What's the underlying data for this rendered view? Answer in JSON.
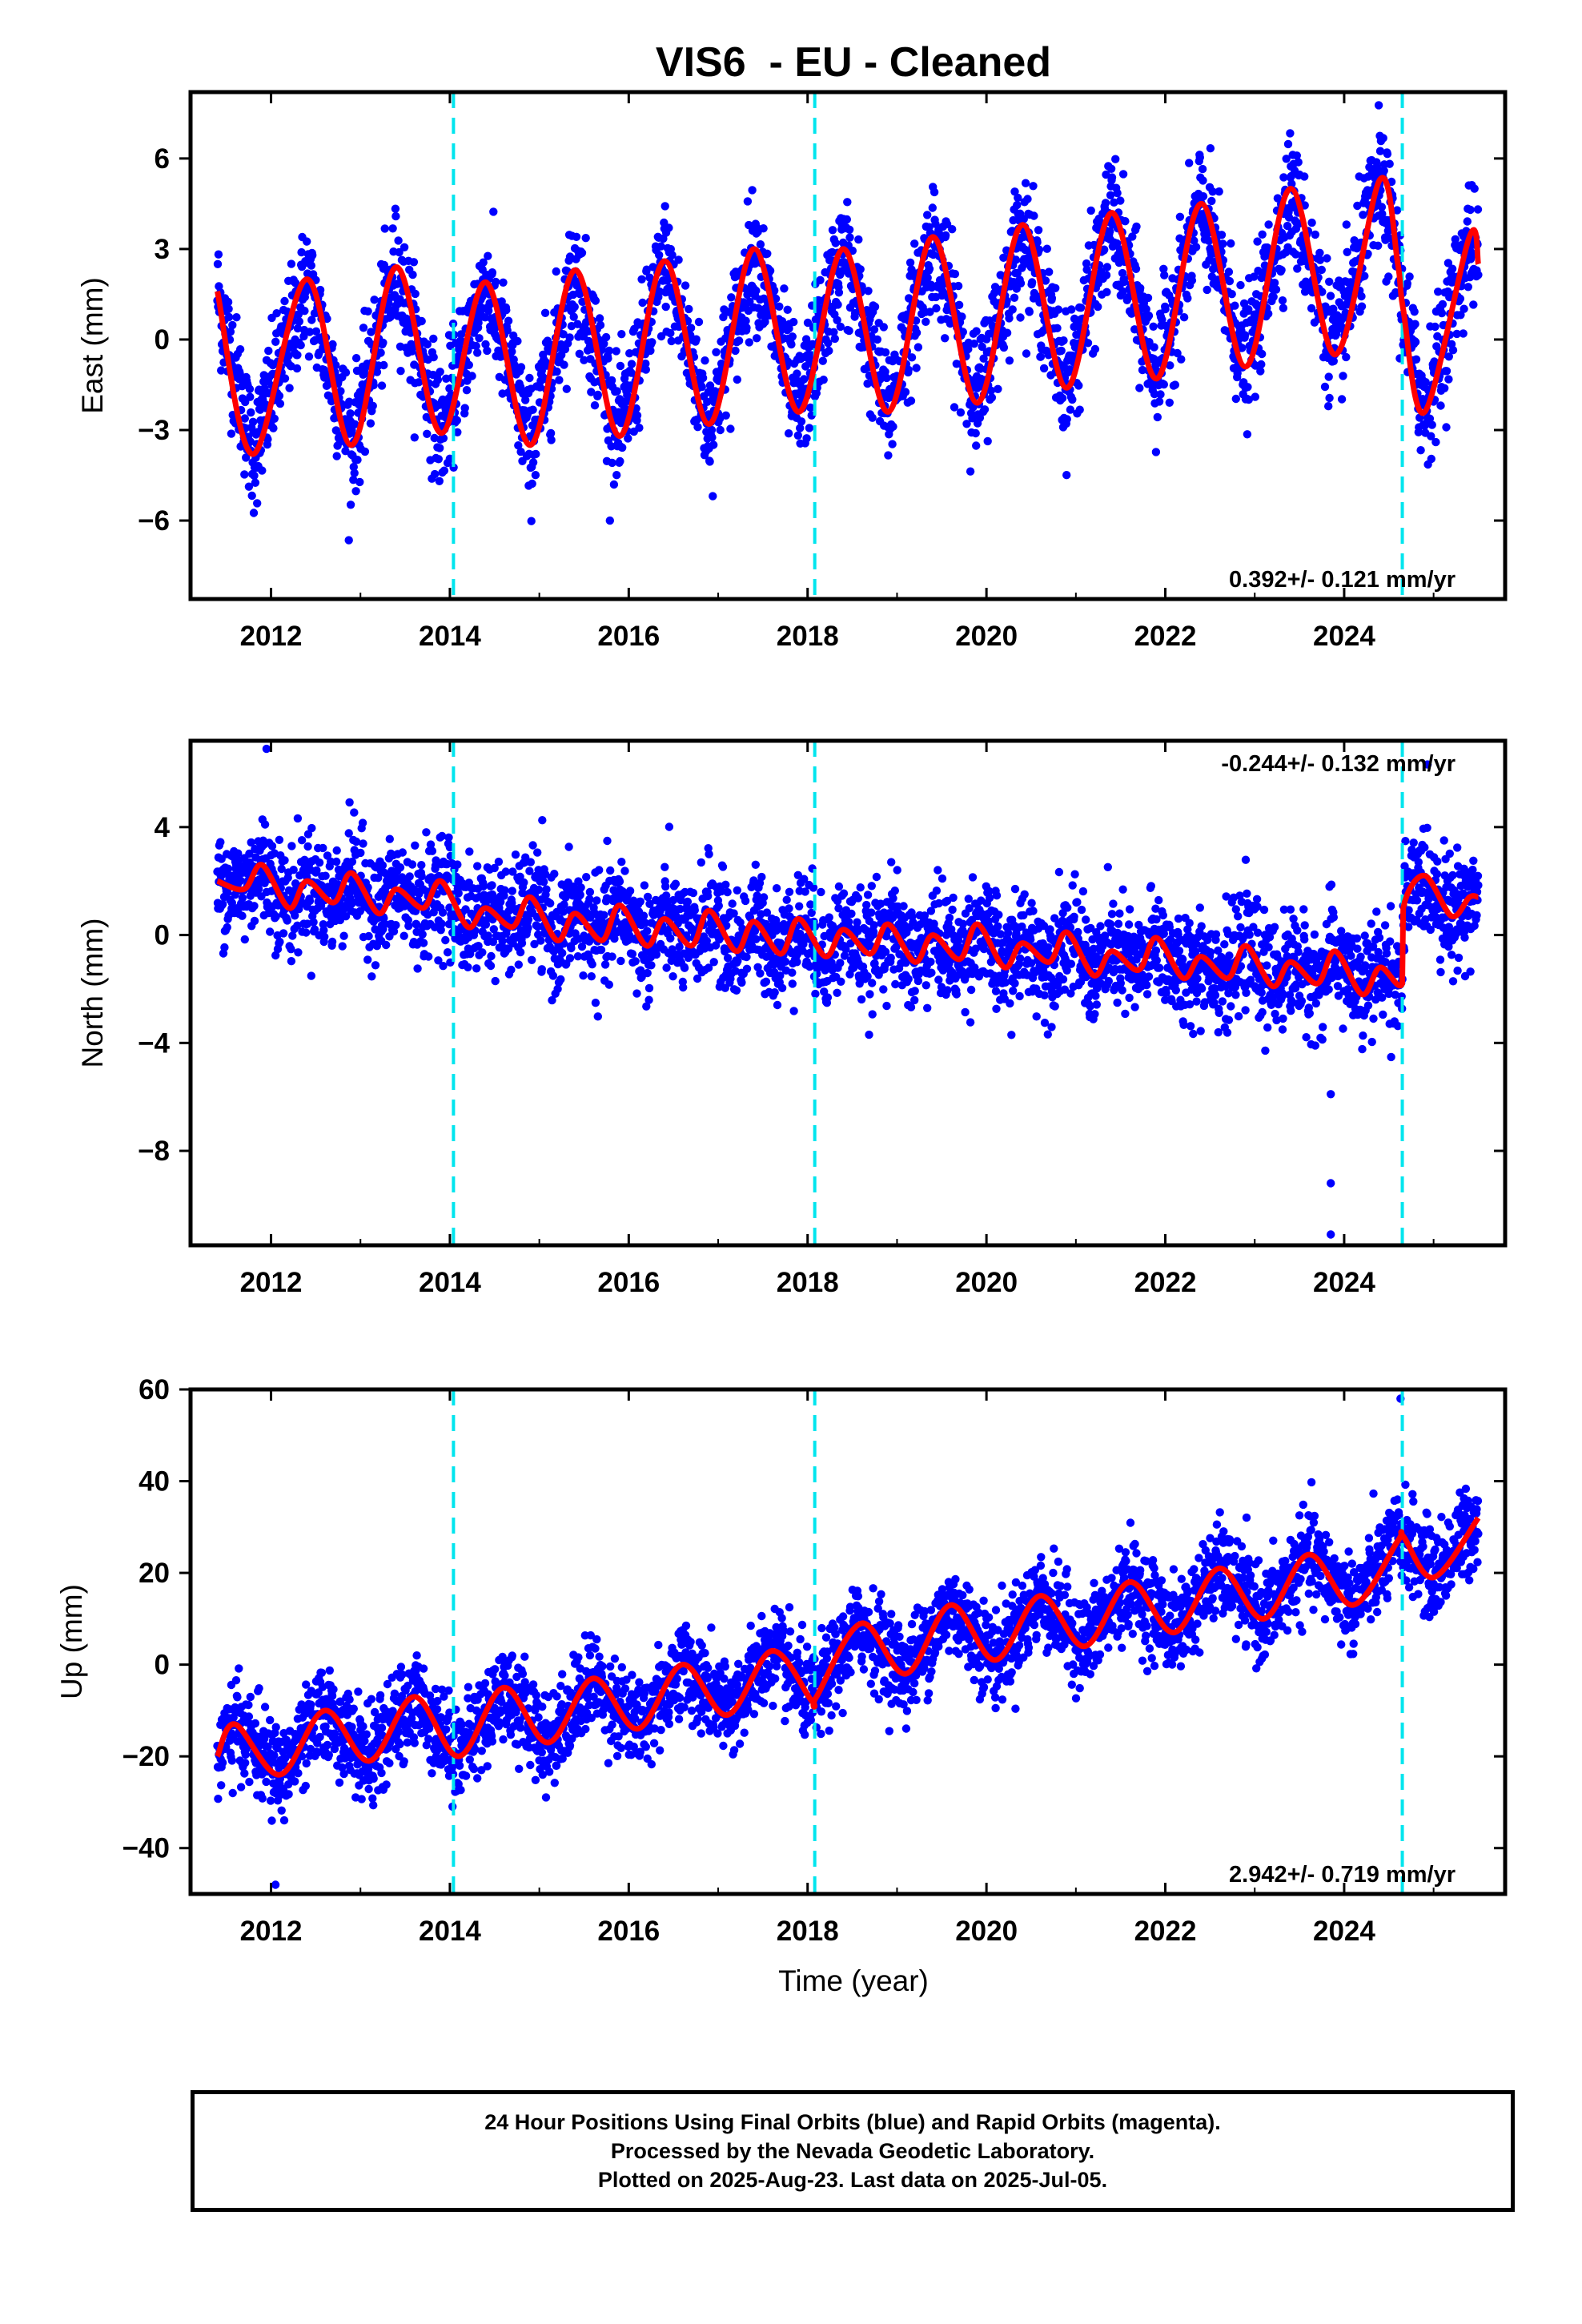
{
  "title": "VIS6  - EU - Cleaned",
  "xlabel": "Time (year)",
  "colors": {
    "final_orbits": "#0000ff",
    "model_fit": "#ff0000",
    "event_lines": "#00e5ee",
    "rapid_orbits": "#ff00ff"
  },
  "event_lines_years": [
    2014.04,
    2018.08,
    2024.65
  ],
  "footer": {
    "line1": "24 Hour Positions Using Final Orbits (blue) and Rapid Orbits (magenta).",
    "line2": "Processed by the Nevada Geodetic Laboratory.",
    "line3": "Plotted on 2025-Aug-23. Last data on 2025-Jul-05."
  },
  "chart_data": [
    {
      "type": "scatter",
      "component": "East",
      "ylabel": "East (mm)",
      "xlim": [
        2011.1,
        2025.8
      ],
      "ylim": [
        -8.6,
        8.2
      ],
      "xticks": [
        "2012",
        "2014",
        "2016",
        "2018",
        "2020",
        "2022",
        "2024"
      ],
      "yticks": [
        "6",
        "3",
        "0",
        "-3",
        "-6"
      ],
      "rate_label": "0.392+/- 0.121 mm/yr",
      "rate_position": "bottom-right",
      "fit_model": {
        "x": [
          2011.4,
          2011.8,
          2012.4,
          2012.9,
          2013.4,
          2013.9,
          2014.4,
          2014.9,
          2015.4,
          2015.9,
          2016.4,
          2016.9,
          2017.4,
          2017.9,
          2018.4,
          2018.9,
          2019.4,
          2019.9,
          2020.4,
          2020.9,
          2021.4,
          2021.9,
          2022.4,
          2022.9,
          2023.4,
          2023.9,
          2024.4,
          2024.6,
          2024.66,
          2024.9,
          2025.4,
          2025.5
        ],
        "y": [
          1.6,
          -3.8,
          2.0,
          -3.5,
          2.4,
          -3.1,
          1.9,
          -3.5,
          2.3,
          -3.2,
          2.6,
          -2.8,
          3.0,
          -2.4,
          3.0,
          -2.4,
          3.4,
          -2.1,
          3.8,
          -1.6,
          4.2,
          -1.3,
          4.5,
          -0.9,
          5.0,
          -0.5,
          5.3,
          2.5,
          1.0,
          -2.4,
          3.4,
          2.5
        ]
      }
    },
    {
      "type": "scatter",
      "component": "North",
      "ylabel": "North (mm)",
      "xlim": [
        2011.1,
        2025.8
      ],
      "ylim": [
        -11.5,
        7.2
      ],
      "xticks": [
        "2012",
        "2014",
        "2016",
        "2018",
        "2020",
        "2022",
        "2024"
      ],
      "yticks": [
        "4",
        "0",
        "-4",
        "-8"
      ],
      "rate_label": "-0.244+/- 0.132 mm/yr",
      "rate_position": "top-right",
      "fit_model": {
        "x": [
          2011.4,
          2011.7,
          2011.9,
          2012.2,
          2012.4,
          2012.7,
          2012.9,
          2013.2,
          2013.4,
          2013.7,
          2013.9,
          2014.2,
          2014.4,
          2014.7,
          2014.9,
          2015.2,
          2015.4,
          2015.7,
          2015.9,
          2016.2,
          2016.4,
          2016.7,
          2016.9,
          2017.2,
          2017.4,
          2017.7,
          2017.9,
          2018.2,
          2018.4,
          2018.7,
          2018.9,
          2019.2,
          2019.4,
          2019.7,
          2019.9,
          2020.2,
          2020.4,
          2020.7,
          2020.9,
          2021.2,
          2021.4,
          2021.7,
          2021.9,
          2022.2,
          2022.4,
          2022.7,
          2022.9,
          2023.2,
          2023.4,
          2023.7,
          2023.9,
          2024.2,
          2024.4,
          2024.65,
          2024.66,
          2024.9,
          2025.2,
          2025.4,
          2025.5
        ],
        "y": [
          2.0,
          1.7,
          2.6,
          1.0,
          2.0,
          1.2,
          2.3,
          0.8,
          1.7,
          1.0,
          2.0,
          0.3,
          1.0,
          0.3,
          1.4,
          -0.2,
          0.8,
          -0.2,
          1.1,
          -0.4,
          0.6,
          -0.4,
          0.9,
          -0.6,
          0.5,
          -0.7,
          0.6,
          -0.8,
          0.2,
          -0.7,
          0.4,
          -1.0,
          0.0,
          -0.9,
          0.4,
          -1.2,
          -0.3,
          -1.0,
          0.1,
          -1.5,
          -0.6,
          -1.3,
          -0.1,
          -1.6,
          -0.8,
          -1.6,
          -0.4,
          -1.9,
          -1.0,
          -1.8,
          -0.6,
          -2.2,
          -1.2,
          -1.8,
          1.0,
          2.2,
          0.7,
          1.4,
          1.4
        ]
      },
      "outliers": [
        {
          "x": 2023.85,
          "y": -5.9
        },
        {
          "x": 2023.85,
          "y": -9.2
        },
        {
          "x": 2023.85,
          "y": -11.1
        },
        {
          "x": 2011.95,
          "y": 6.9
        }
      ]
    },
    {
      "type": "scatter",
      "component": "Up",
      "ylabel": "Up (mm)",
      "xlim": [
        2011.1,
        2025.8
      ],
      "ylim": [
        -50,
        60
      ],
      "xticks": [
        "2012",
        "2014",
        "2016",
        "2018",
        "2020",
        "2022",
        "2024"
      ],
      "yticks": [
        "60",
        "40",
        "20",
        "0",
        "-20",
        "-40"
      ],
      "rate_label": "2.942+/- 0.719 mm/yr",
      "rate_position": "bottom-right",
      "fit_model": {
        "x": [
          2011.4,
          2011.6,
          2012.1,
          2012.6,
          2013.1,
          2013.6,
          2014.1,
          2014.6,
          2015.1,
          2015.6,
          2016.1,
          2016.6,
          2017.1,
          2017.6,
          2018.05,
          2018.1,
          2018.6,
          2019.1,
          2019.6,
          2020.1,
          2020.6,
          2021.1,
          2021.6,
          2022.1,
          2022.6,
          2023.1,
          2023.6,
          2024.1,
          2024.6,
          2024.66,
          2025.0,
          2025.5
        ],
        "y": [
          -20,
          -13,
          -24,
          -10,
          -21,
          -7,
          -20,
          -5,
          -17,
          -3,
          -14,
          0,
          -11,
          3,
          -8,
          -7,
          9,
          -2,
          13,
          1,
          15,
          4,
          18,
          7,
          21,
          10,
          24,
          13,
          27,
          28,
          19,
          32
        ]
      },
      "outliers": [
        {
          "x": 2024.63,
          "y": 58
        },
        {
          "x": 2012.05,
          "y": -48
        }
      ]
    }
  ]
}
